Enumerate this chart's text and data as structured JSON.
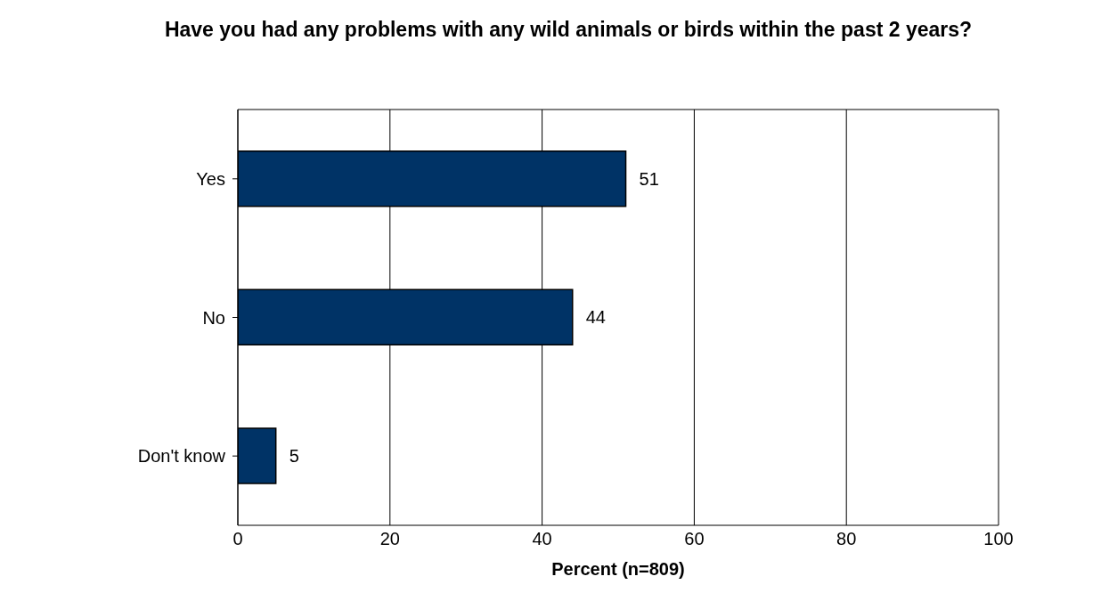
{
  "chart_data": {
    "type": "bar",
    "orientation": "horizontal",
    "title": "Have you had any problems with any wild animals or birds within the past 2 years?",
    "xlabel": "Percent (n=809)",
    "categories": [
      "Yes",
      "No",
      "Don't know"
    ],
    "values": [
      51,
      44,
      5
    ],
    "color": "#003366",
    "xlim": [
      0,
      100
    ],
    "xticks": [
      0,
      20,
      40,
      60,
      80,
      100
    ],
    "grid": "x",
    "data_labels": true,
    "legend": false
  }
}
